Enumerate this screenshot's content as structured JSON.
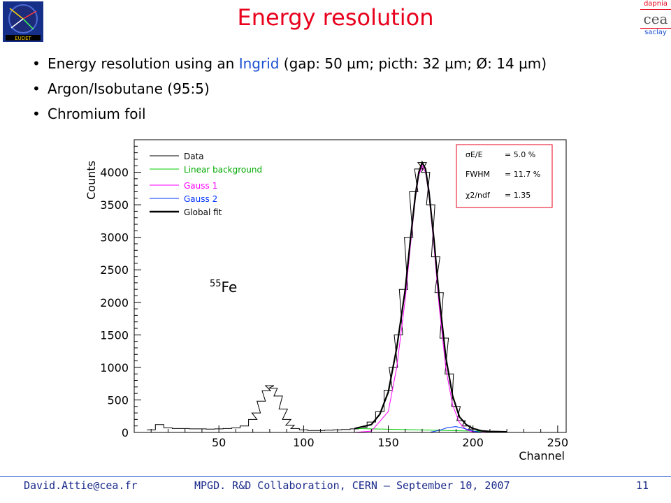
{
  "slide": {
    "title": "Energy resolution",
    "bullets": [
      {
        "pre": "Energy resolution using an ",
        "highlight": "Ingrid",
        "post": " (gap: 50 µm; picth: 32 µm; Ø: 14 µm)"
      },
      {
        "pre": "Argon/Isobutane (95:5)",
        "highlight": "",
        "post": ""
      },
      {
        "pre": "Chromium foil",
        "highlight": "",
        "post": ""
      }
    ],
    "logo_right": [
      "dapnia",
      "cea",
      "saclay"
    ],
    "logo_left_text": "EUDET",
    "footer": {
      "email": "David.Attie@cea.fr",
      "event": "MPGD. R&D Collaboration, CERN – September 10, 2007",
      "page": "11"
    }
  },
  "colors": {
    "title": "#e8001c",
    "accent": "#1a4fd0",
    "data": "#000000",
    "linear_background": "#00cc00",
    "gauss1": "#ff00ff",
    "gauss2": "#0033ff",
    "global_fit": "#000000"
  },
  "chart_data": {
    "type": "line",
    "xlabel": "Channel",
    "ylabel": "Counts",
    "xlim": [
      0,
      255
    ],
    "ylim": [
      0,
      4500
    ],
    "xticks": [
      50,
      100,
      150,
      200,
      250
    ],
    "yticks": [
      0,
      500,
      1000,
      1500,
      2000,
      2500,
      3000,
      3500,
      4000
    ],
    "legend_position": "top-left",
    "legend": [
      "Data",
      "Linear background",
      "Gauss 1",
      "Gauss 2",
      "Global fit"
    ],
    "annotation": {
      "sup": "55",
      "text": "Fe"
    },
    "stats_box": {
      "position": "top-right",
      "lines": [
        {
          "label": "σE/E",
          "value": "= 5.0 %"
        },
        {
          "label": "FWHM",
          "value": "= 11.7 %"
        },
        {
          "label": "χ2/ndf",
          "value": "= 1.35"
        }
      ]
    },
    "series": [
      {
        "name": "Data",
        "x": [
          10,
          15,
          20,
          25,
          30,
          35,
          40,
          45,
          50,
          55,
          60,
          65,
          70,
          72,
          75,
          78,
          80,
          82,
          85,
          88,
          90,
          92,
          95,
          100,
          105,
          110,
          115,
          120,
          125,
          130,
          135,
          140,
          145,
          150,
          153,
          156,
          159,
          162,
          165,
          168,
          170,
          172,
          175,
          178,
          180,
          183,
          186,
          190,
          193,
          196,
          200,
          205,
          210,
          215,
          220
        ],
        "y": [
          40,
          120,
          70,
          60,
          60,
          55,
          55,
          50,
          55,
          60,
          70,
          100,
          200,
          300,
          480,
          640,
          720,
          680,
          560,
          360,
          200,
          110,
          60,
          40,
          30,
          30,
          35,
          40,
          45,
          55,
          80,
          160,
          320,
          650,
          1000,
          1500,
          2200,
          3000,
          3700,
          4050,
          4150,
          4000,
          3500,
          2700,
          2150,
          1450,
          900,
          400,
          180,
          100,
          50,
          20,
          10,
          5,
          0
        ]
      },
      {
        "name": "Linear background",
        "x": [
          130,
          220
        ],
        "y": [
          60,
          10
        ]
      },
      {
        "name": "Gauss 1",
        "x": [
          130,
          140,
          150,
          155,
          160,
          163,
          166,
          168,
          170,
          172,
          174,
          177,
          180,
          184,
          188,
          192,
          196,
          200,
          210,
          220
        ],
        "y": [
          0,
          20,
          320,
          1000,
          2050,
          2850,
          3600,
          3950,
          4100,
          4000,
          3650,
          2850,
          1950,
          980,
          420,
          150,
          40,
          10,
          0,
          0
        ]
      },
      {
        "name": "Gauss 2",
        "x": [
          175,
          180,
          185,
          190,
          195,
          200,
          205
        ],
        "y": [
          5,
          30,
          75,
          90,
          60,
          20,
          3
        ]
      },
      {
        "name": "Global fit",
        "x": [
          130,
          140,
          145,
          150,
          155,
          160,
          163,
          166,
          168,
          170,
          172,
          174,
          177,
          180,
          184,
          188,
          192,
          196,
          200,
          205,
          210,
          220
        ],
        "y": [
          60,
          120,
          280,
          620,
          1300,
          2200,
          2950,
          3650,
          4000,
          4150,
          4050,
          3700,
          2950,
          2100,
          1150,
          560,
          240,
          120,
          60,
          25,
          15,
          10
        ]
      }
    ]
  }
}
